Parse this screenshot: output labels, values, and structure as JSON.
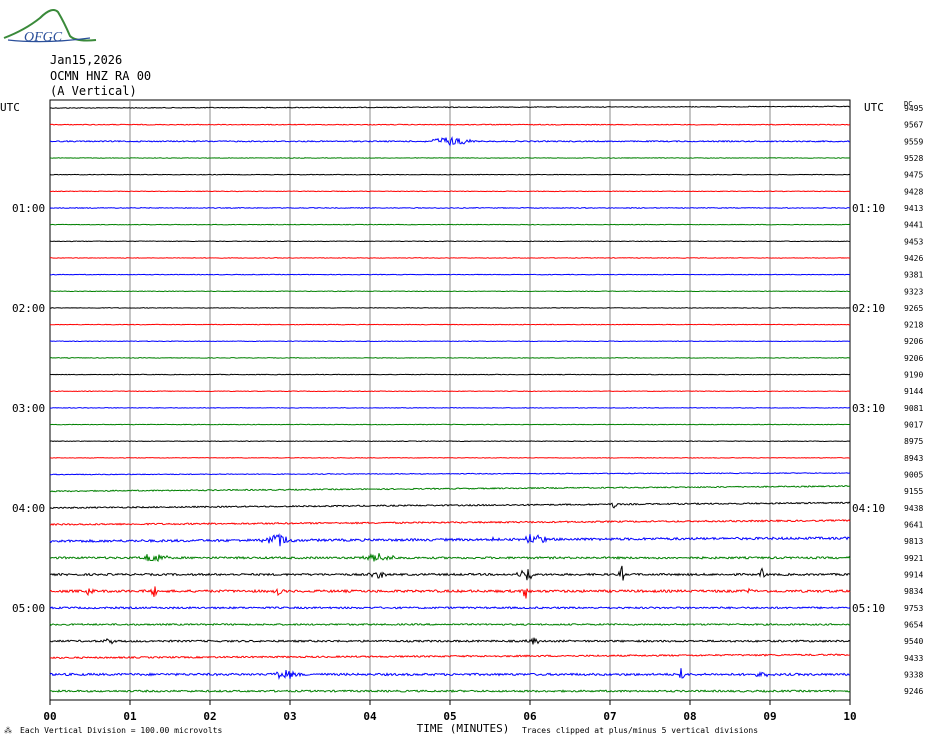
{
  "logo": {
    "text": "OFGC",
    "colors": {
      "arc": "#3a8a3a",
      "text": "#2a4f9a"
    }
  },
  "header": {
    "date": "Jan15,2026",
    "station": "OCMN HNZ RA 00",
    "component": "(A Vertical)"
  },
  "axis": {
    "left_title": "UTC",
    "right_title": "UTC",
    "right_tag": "DC",
    "xlabel": "TIME (MINUTES)"
  },
  "footer": {
    "scale_note": "Each Vertical Division =  100.00 microvolts",
    "clip_note": "Traces clipped at plus/minus 5 vertical divisions"
  },
  "chart_data": {
    "type": "line",
    "subtype": "seismogram-helicorder",
    "x": {
      "label": "TIME (MINUTES)",
      "range": [
        0,
        10
      ],
      "ticks": [
        "00",
        "01",
        "02",
        "03",
        "04",
        "05",
        "06",
        "07",
        "08",
        "09",
        "10"
      ]
    },
    "line_minutes": 10,
    "line_colors": [
      "#000000",
      "#ff0000",
      "#0000ff",
      "#008000"
    ],
    "left_time_labels": [
      {
        "line": 6,
        "label": "01:00"
      },
      {
        "line": 12,
        "label": "02:00"
      },
      {
        "line": 18,
        "label": "03:00"
      },
      {
        "line": 24,
        "label": "04:00"
      },
      {
        "line": 30,
        "label": "05:00"
      }
    ],
    "right_time_labels": [
      {
        "line": 6,
        "label": "01:10"
      },
      {
        "line": 12,
        "label": "02:10"
      },
      {
        "line": 18,
        "label": "03:10"
      },
      {
        "line": 24,
        "label": "04:10"
      },
      {
        "line": 30,
        "label": "05:10"
      }
    ],
    "dc_offsets": [
      9495,
      9567,
      9559,
      9528,
      9475,
      9428,
      9413,
      9441,
      9453,
      9426,
      9381,
      9323,
      9265,
      9218,
      9206,
      9206,
      9190,
      9144,
      9081,
      9017,
      8975,
      8943,
      9005,
      9155,
      9438,
      9641,
      9813,
      9921,
      9914,
      9834,
      9753,
      9654,
      9540,
      9433,
      9338,
      9246
    ],
    "noise_level": [
      0.4,
      0.4,
      0.6,
      0.3,
      0.3,
      0.3,
      0.4,
      0.3,
      0.3,
      0.3,
      0.3,
      0.3,
      0.3,
      0.3,
      0.3,
      0.3,
      0.3,
      0.3,
      0.3,
      0.3,
      0.3,
      0.3,
      0.4,
      0.6,
      0.7,
      0.8,
      1.2,
      1.0,
      1.0,
      1.2,
      0.9,
      0.8,
      0.9,
      0.8,
      1.1,
      0.9
    ],
    "drift": [
      -1.5,
      0,
      0,
      0,
      0,
      0,
      0,
      0,
      0,
      0,
      0,
      0,
      0,
      0,
      0,
      0,
      0,
      0,
      0,
      0,
      0,
      0,
      -1.5,
      -5,
      -5,
      -4,
      -3,
      0,
      0,
      0,
      0,
      0,
      0,
      -3,
      0,
      0
    ],
    "events": [
      {
        "line": 2,
        "minute": 5.0,
        "amp": 5,
        "width": 0.35
      },
      {
        "line": 24,
        "minute": 7.05,
        "amp": 5,
        "width": 0.05
      },
      {
        "line": 26,
        "minute": 2.85,
        "amp": 7,
        "width": 0.25
      },
      {
        "line": 26,
        "minute": 6.05,
        "amp": 6,
        "width": 0.2
      },
      {
        "line": 26,
        "minute": 5.5,
        "amp": 3,
        "width": 0.1
      },
      {
        "line": 27,
        "minute": 1.3,
        "amp": 6,
        "width": 0.2
      },
      {
        "line": 27,
        "minute": 4.1,
        "amp": 4,
        "width": 0.3
      },
      {
        "line": 28,
        "minute": 5.95,
        "amp": 7,
        "width": 0.15
      },
      {
        "line": 28,
        "minute": 4.1,
        "amp": 4,
        "width": 0.15
      },
      {
        "line": 28,
        "minute": 7.15,
        "amp": 9,
        "width": 0.05
      },
      {
        "line": 28,
        "minute": 8.9,
        "amp": 5,
        "width": 0.05
      },
      {
        "line": 29,
        "minute": 0.5,
        "amp": 6,
        "width": 0.05
      },
      {
        "line": 29,
        "minute": 1.3,
        "amp": 7,
        "width": 0.05
      },
      {
        "line": 29,
        "minute": 2.85,
        "amp": 5,
        "width": 0.08
      },
      {
        "line": 29,
        "minute": 5.95,
        "amp": 9,
        "width": 0.05
      },
      {
        "line": 29,
        "minute": 8.75,
        "amp": 5,
        "width": 0.05
      },
      {
        "line": 32,
        "minute": 0.75,
        "amp": 4,
        "width": 0.1
      },
      {
        "line": 32,
        "minute": 6.05,
        "amp": 3,
        "width": 0.15
      },
      {
        "line": 34,
        "minute": 2.95,
        "amp": 5,
        "width": 0.25
      },
      {
        "line": 34,
        "minute": 7.9,
        "amp": 8,
        "width": 0.05
      },
      {
        "line": 34,
        "minute": 8.9,
        "amp": 3,
        "width": 0.1
      }
    ]
  }
}
